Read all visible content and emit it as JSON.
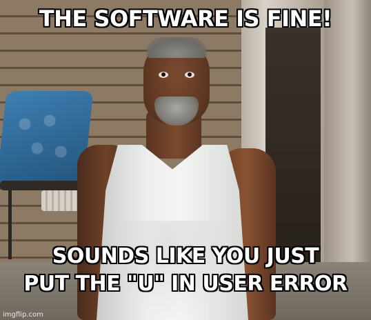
{
  "meme": {
    "top_text": "THE SOFTWARE IS FINE!",
    "bottom_text_line1": "SOUNDS LIKE YOU JUST",
    "bottom_text_line2": "PUT THE \"U\" IN USER ERROR",
    "watermark": "imgflip.com"
  }
}
